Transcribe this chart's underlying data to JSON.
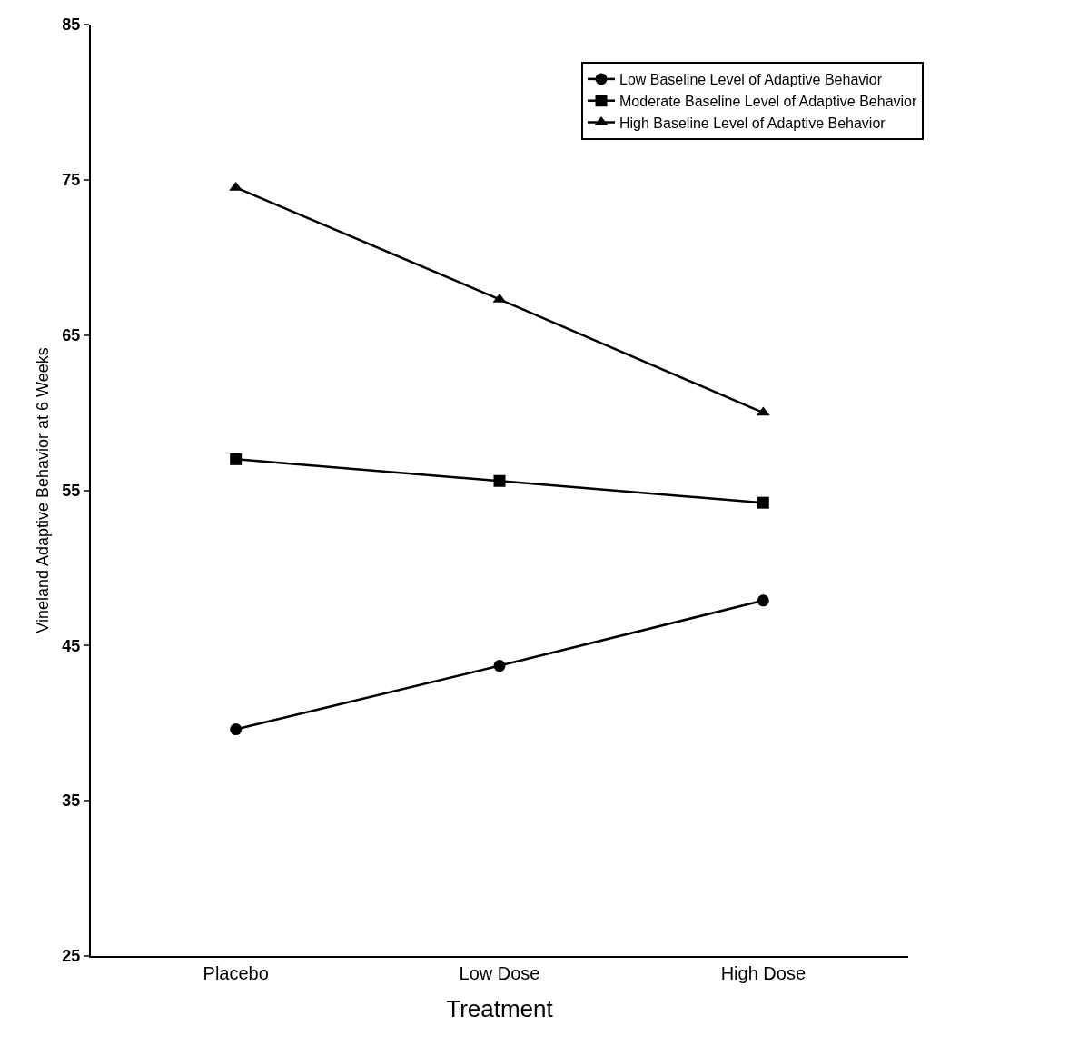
{
  "chart_data": {
    "type": "line",
    "xlabel": "Treatment",
    "ylabel": "Vineland Adaptive Behavior at 6 Weeks",
    "categories": [
      "Placebo",
      "Low Dose",
      "High Dose"
    ],
    "series": [
      {
        "name": "Low Baseline Level of Adaptive Behavior",
        "color": "#000000",
        "marker": "circle",
        "values": [
          39.6,
          43.7,
          47.9
        ]
      },
      {
        "name": "Moderate Baseline Level of Adaptive Behavior",
        "color": "#000000",
        "marker": "square",
        "values": [
          57.0,
          55.6,
          54.2
        ]
      },
      {
        "name": "High Baseline Level of Adaptive Behavior",
        "color": "#000000",
        "marker": "triangle",
        "values": [
          74.5,
          67.3,
          60.0
        ]
      }
    ],
    "ylim": [
      25,
      85
    ],
    "yticks": [
      25,
      35,
      45,
      55,
      65,
      75,
      85
    ],
    "grid": false,
    "legend": "top right",
    "line_style": "solid"
  }
}
